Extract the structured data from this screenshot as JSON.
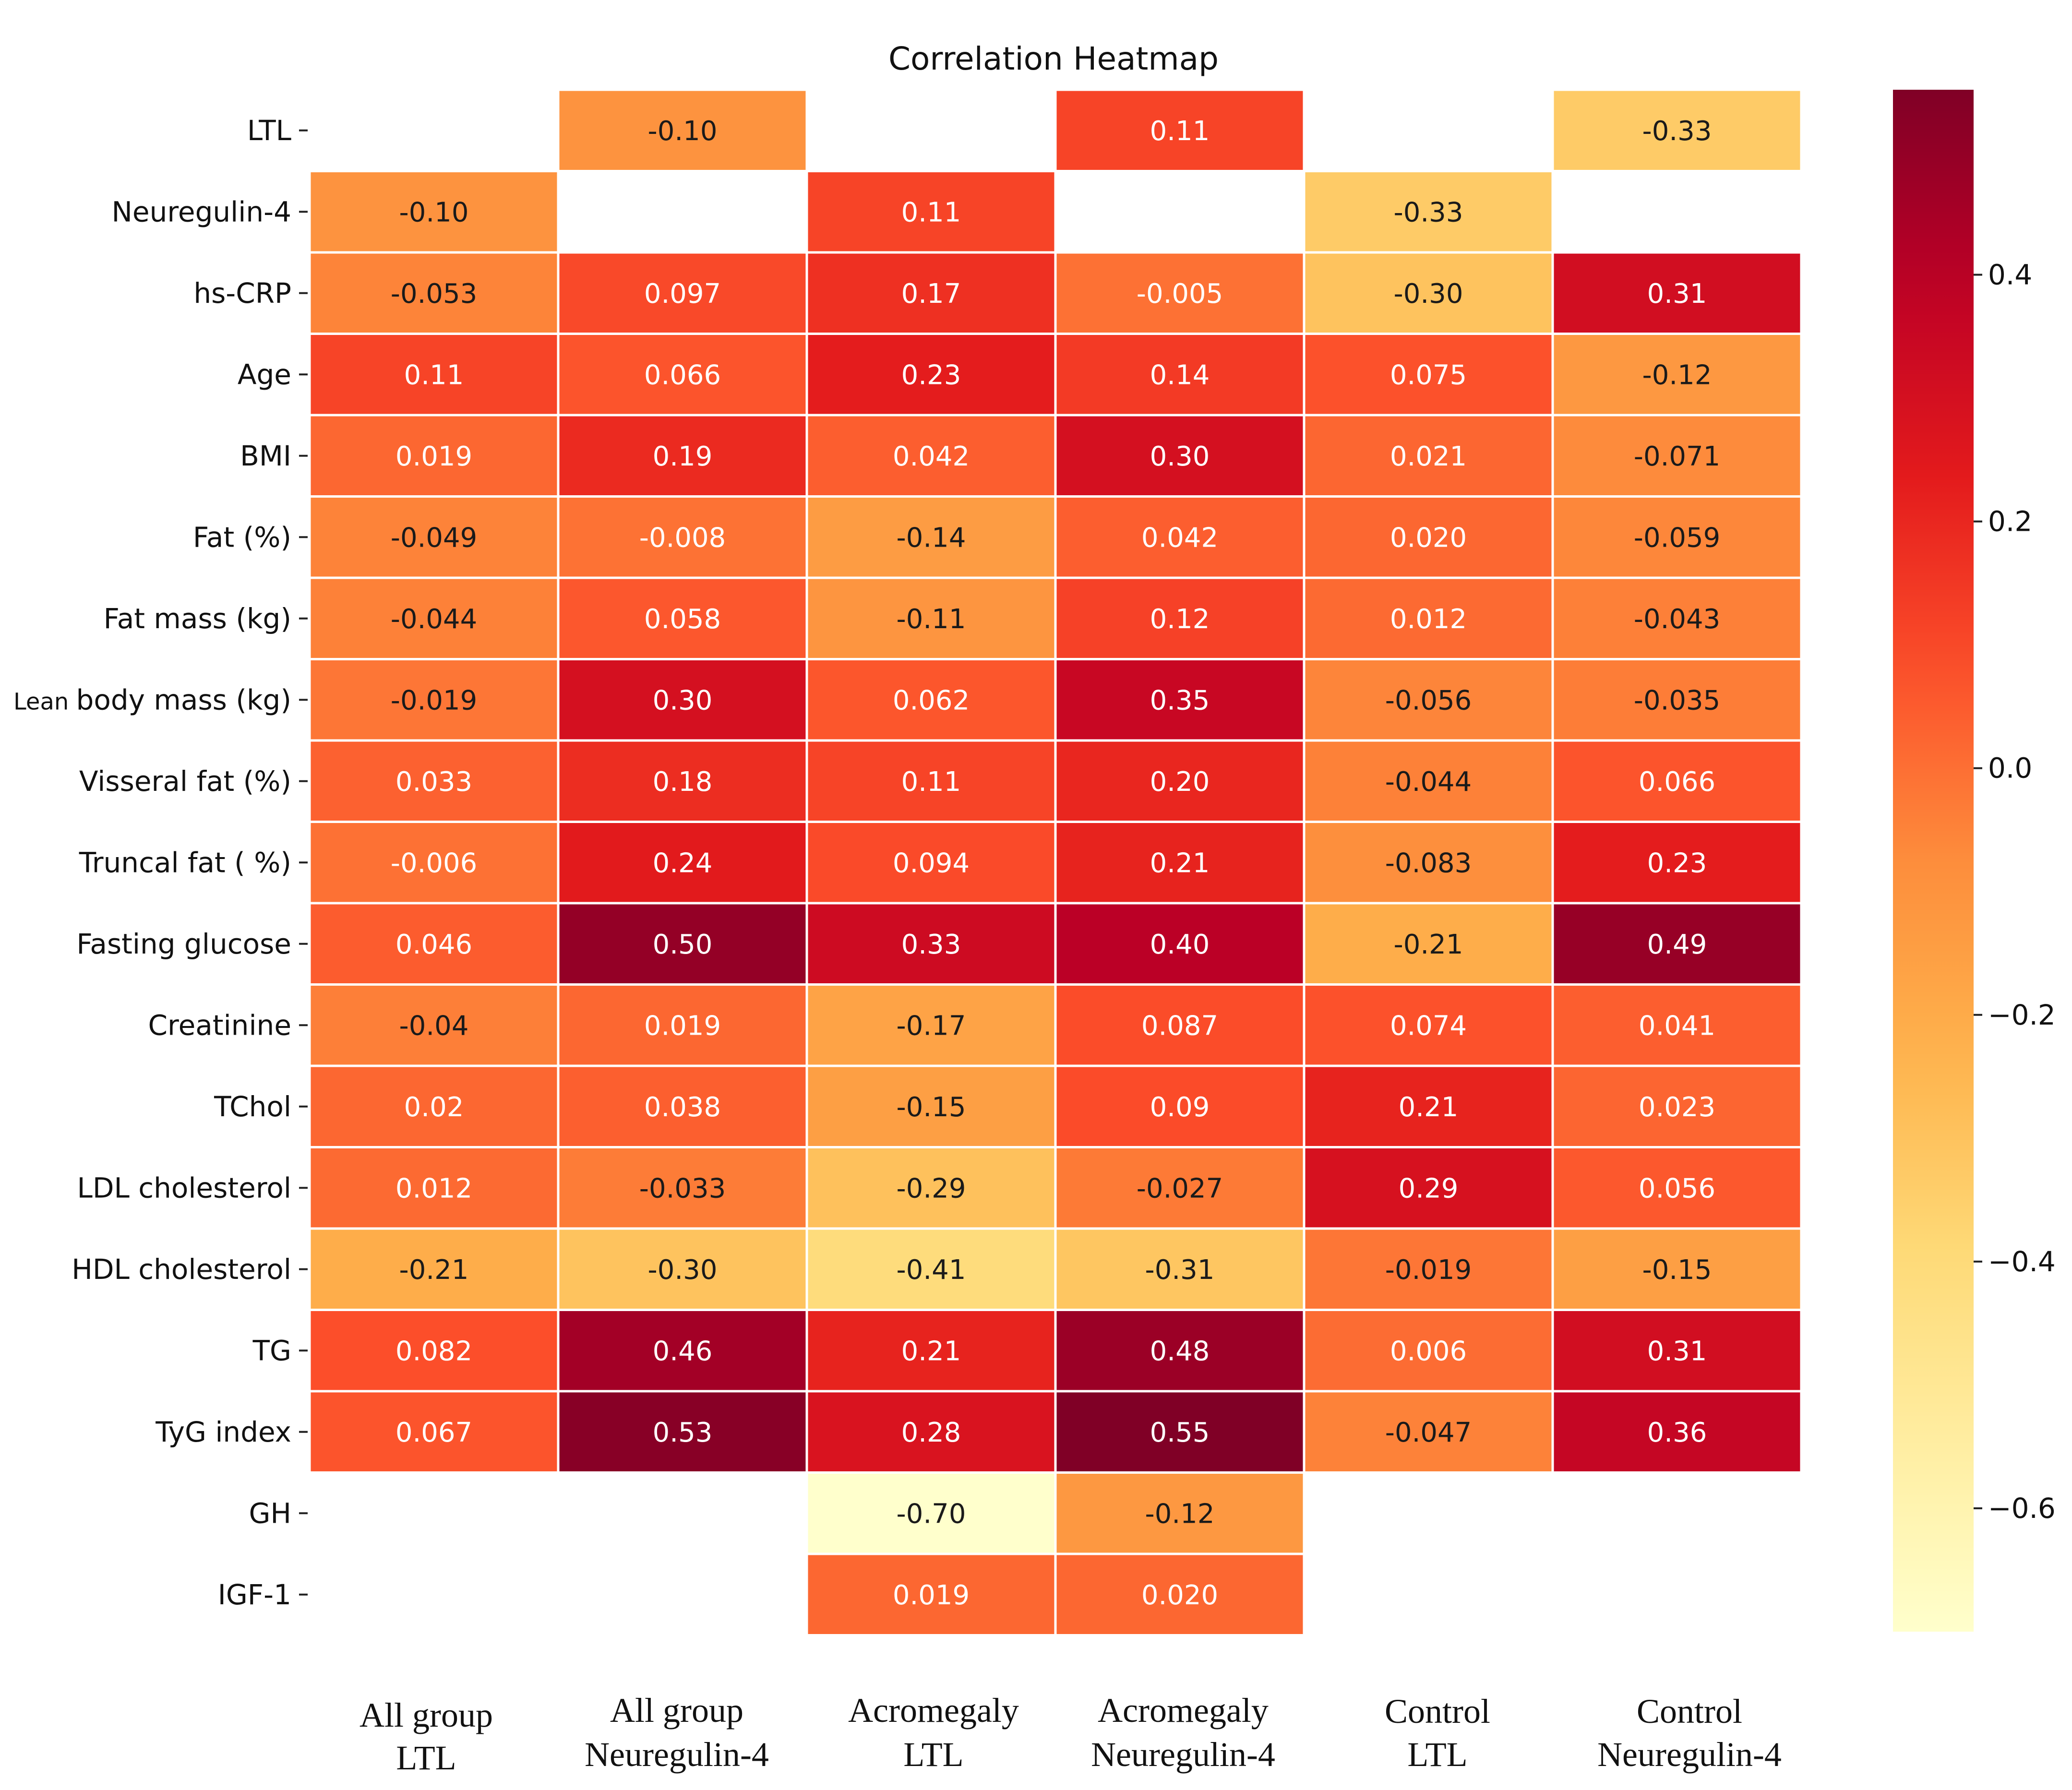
{
  "chart_data": {
    "type": "heatmap",
    "title": "Correlation Heatmap",
    "rows": [
      "LTL",
      "Neuregulin-4",
      "hs-CRP",
      "Age",
      "BMI",
      "Fat (%)",
      "Fat mass (kg)",
      "Lean body mass (kg)",
      "Visseral fat (%)",
      "Truncal fat ( %)",
      "Fasting glucose",
      "Creatinine",
      "TChol",
      "LDL cholesterol",
      "HDL cholesterol",
      "TG",
      "TyG index",
      "GH",
      "IGF-1"
    ],
    "row_label_prefix": {
      "index": 7,
      "prefix": "Lean",
      "rest": "body mass (kg)"
    },
    "columns": [
      {
        "line1": "All group",
        "line2": "LTL"
      },
      {
        "line1": "All group",
        "line2": "Neuregulin-4"
      },
      {
        "line1": "Acromegaly",
        "line2": "LTL"
      },
      {
        "line1": "Acromegaly",
        "line2": "Neuregulin-4"
      },
      {
        "line1": "Control",
        "line2": "LTL"
      },
      {
        "line1": "Control",
        "line2": "Neuregulin-4"
      }
    ],
    "values": [
      [
        null,
        -0.1,
        null,
        0.11,
        null,
        -0.33
      ],
      [
        -0.1,
        null,
        0.11,
        null,
        -0.33,
        null
      ],
      [
        -0.053,
        0.097,
        0.17,
        -0.005,
        -0.3,
        0.31
      ],
      [
        0.11,
        0.066,
        0.23,
        0.14,
        0.075,
        -0.12
      ],
      [
        0.019,
        0.19,
        0.042,
        0.3,
        0.021,
        -0.071
      ],
      [
        -0.049,
        -0.008,
        -0.14,
        0.042,
        0.02,
        -0.059
      ],
      [
        -0.044,
        0.058,
        -0.11,
        0.12,
        0.012,
        -0.043
      ],
      [
        -0.019,
        0.3,
        0.062,
        0.35,
        -0.056,
        -0.035
      ],
      [
        0.033,
        0.18,
        0.11,
        0.2,
        -0.044,
        0.066
      ],
      [
        -0.006,
        0.24,
        0.094,
        0.21,
        -0.083,
        0.23
      ],
      [
        0.046,
        0.5,
        0.33,
        0.4,
        -0.21,
        0.49
      ],
      [
        -0.04,
        0.019,
        -0.17,
        0.087,
        0.074,
        0.041
      ],
      [
        0.02,
        0.038,
        -0.15,
        0.09,
        0.21,
        0.023
      ],
      [
        0.012,
        -0.033,
        -0.29,
        -0.027,
        0.29,
        0.056
      ],
      [
        -0.21,
        -0.3,
        -0.41,
        -0.31,
        -0.019,
        -0.15
      ],
      [
        0.082,
        0.46,
        0.21,
        0.48,
        0.006,
        0.31
      ],
      [
        0.067,
        0.53,
        0.28,
        0.55,
        -0.047,
        0.36
      ],
      [
        null,
        null,
        -0.7,
        -0.12,
        null,
        null
      ],
      [
        null,
        null,
        0.019,
        0.02,
        null,
        null
      ]
    ],
    "labels": [
      [
        "",
        "-0.10",
        "",
        "0.11",
        "",
        "-0.33"
      ],
      [
        "-0.10",
        "",
        "0.11",
        "",
        "-0.33",
        ""
      ],
      [
        "-0.053",
        "0.097",
        "0.17",
        "-0.005",
        "-0.30",
        "0.31"
      ],
      [
        "0.11",
        "0.066",
        "0.23",
        "0.14",
        "0.075",
        "-0.12"
      ],
      [
        "0.019",
        "0.19",
        "0.042",
        "0.30",
        "0.021",
        "-0.071"
      ],
      [
        "-0.049",
        "-0.008",
        "-0.14",
        "0.042",
        "0.020",
        "-0.059"
      ],
      [
        "-0.044",
        "0.058",
        "-0.11",
        "0.12",
        "0.012",
        "-0.043"
      ],
      [
        "-0.019",
        "0.30",
        "0.062",
        "0.35",
        "-0.056",
        "-0.035"
      ],
      [
        "0.033",
        "0.18",
        "0.11",
        "0.20",
        "-0.044",
        "0.066"
      ],
      [
        "-0.006",
        "0.24",
        "0.094",
        "0.21",
        "-0.083",
        "0.23"
      ],
      [
        "0.046",
        "0.50",
        "0.33",
        "0.40",
        "-0.21",
        "0.49"
      ],
      [
        "-0.04",
        "0.019",
        "-0.17",
        "0.087",
        "0.074",
        "0.041"
      ],
      [
        "0.02",
        "0.038",
        "-0.15",
        "0.09",
        "0.21",
        "0.023"
      ],
      [
        "0.012",
        "-0.033",
        "-0.29",
        "-0.027",
        "0.29",
        "0.056"
      ],
      [
        "-0.21",
        "-0.30",
        "-0.41",
        "-0.31",
        "-0.019",
        "-0.15"
      ],
      [
        "0.082",
        "0.46",
        "0.21",
        "0.48",
        "0.006",
        "0.31"
      ],
      [
        "0.067",
        "0.53",
        "0.28",
        "0.55",
        "-0.047",
        "0.36"
      ],
      [
        "",
        "",
        "-0.70",
        "-0.12",
        "",
        ""
      ],
      [
        "",
        "",
        "0.019",
        "0.020",
        "",
        ""
      ]
    ],
    "colorbar": {
      "colormap": "YlOrRd",
      "vmin": -0.7,
      "vmax": 0.55,
      "ticks": [
        0.4,
        0.2,
        0.0,
        -0.2,
        -0.4,
        -0.6
      ],
      "tick_labels": [
        "0.4",
        "0.2",
        "0.0",
        "−0.2",
        "−0.4",
        "−0.6"
      ]
    },
    "grid": false,
    "legend": "right"
  }
}
